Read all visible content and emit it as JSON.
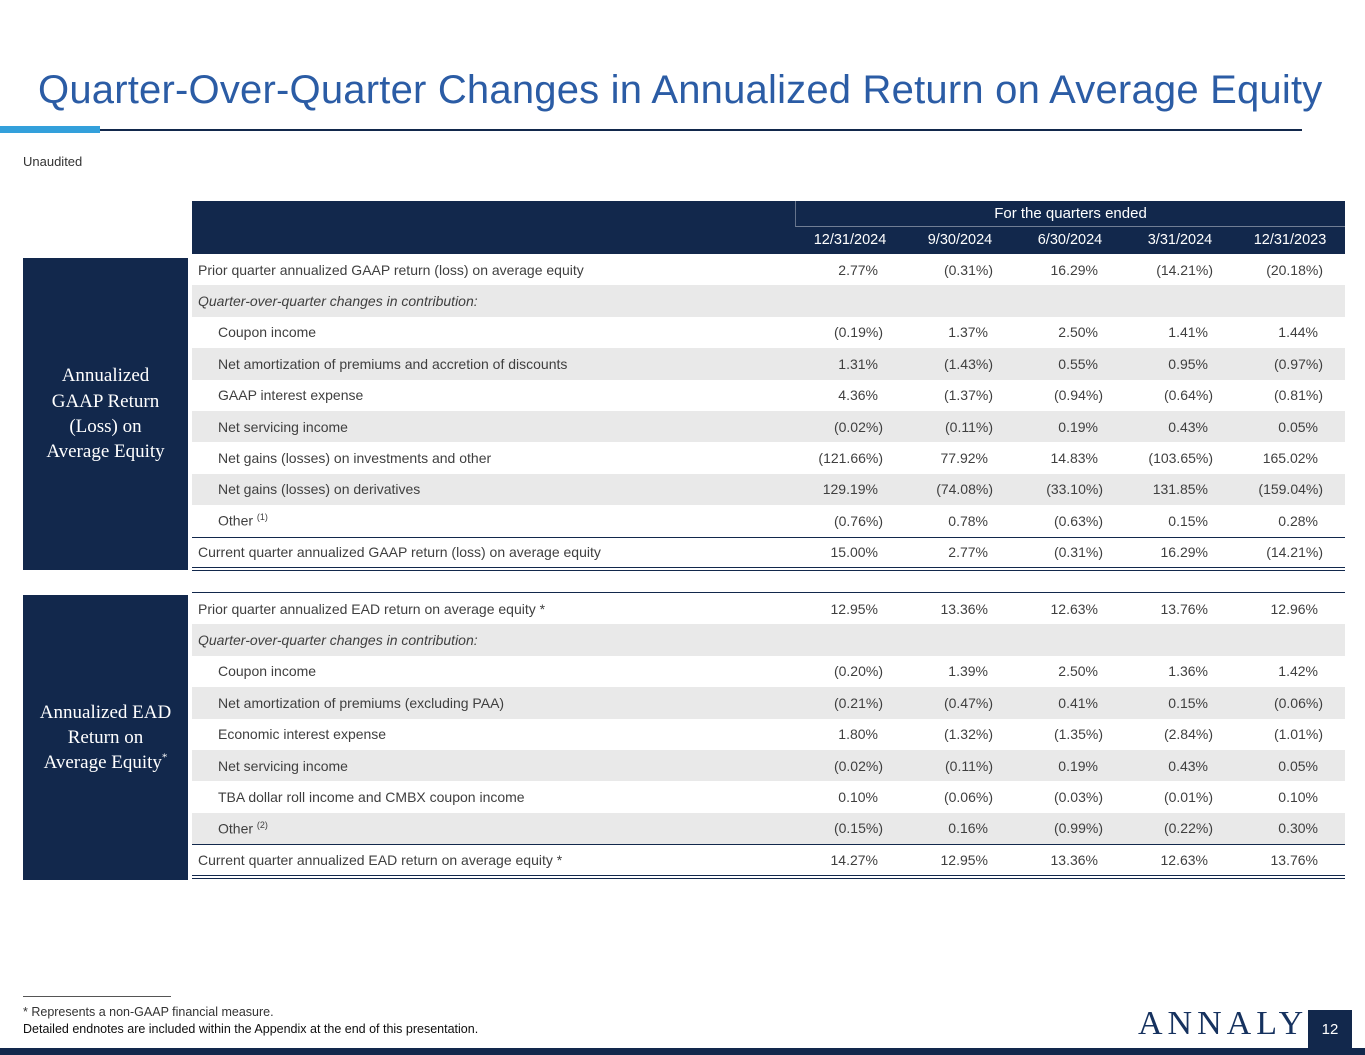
{
  "slide": {
    "title": "Quarter-Over-Quarter Changes in Annualized Return on Average Equity",
    "subtitle": "Unaudited",
    "page_number": "12",
    "logo_text": "ANNALY",
    "logo_reg": "®"
  },
  "colors": {
    "navy": "#12284C",
    "title_blue": "#2B5CA5",
    "accent_blue": "#33A0DB",
    "row_shade": "#E9E9E9",
    "body_text": "#3F3F3F"
  },
  "table_header": {
    "quarters_label": "For the quarters ended",
    "columns": [
      "12/31/2024",
      "9/30/2024",
      "6/30/2024",
      "3/31/2024",
      "12/31/2023"
    ]
  },
  "sections": [
    {
      "sidebar_lines": [
        "Annualized",
        "GAAP Return",
        "(Loss) on",
        "Average Equity"
      ],
      "sidebar_sup": "",
      "rows": [
        {
          "label": "Prior quarter annualized GAAP return (loss) on average equity",
          "sup": "",
          "indent": false,
          "shade": false,
          "type": "plain",
          "values": [
            "2.77%",
            "(0.31%)",
            "16.29%",
            "(14.21%)",
            "(20.18%)"
          ]
        },
        {
          "label": "Quarter-over-quarter changes in contribution:",
          "sup": "",
          "indent": false,
          "shade": true,
          "type": "subheader",
          "values": []
        },
        {
          "label": "Coupon income",
          "sup": "",
          "indent": true,
          "shade": false,
          "type": "plain",
          "values": [
            "(0.19%)",
            "1.37%",
            "2.50%",
            "1.41%",
            "1.44%"
          ]
        },
        {
          "label": "Net amortization of premiums and accretion of discounts",
          "sup": "",
          "indent": true,
          "shade": true,
          "type": "plain",
          "values": [
            "1.31%",
            "(1.43%)",
            "0.55%",
            "0.95%",
            "(0.97%)"
          ]
        },
        {
          "label": "GAAP interest expense",
          "sup": "",
          "indent": true,
          "shade": false,
          "type": "plain",
          "values": [
            "4.36%",
            "(1.37%)",
            "(0.94%)",
            "(0.64%)",
            "(0.81%)"
          ]
        },
        {
          "label": "Net servicing income",
          "sup": "",
          "indent": true,
          "shade": true,
          "type": "plain",
          "values": [
            "(0.02%)",
            "(0.11%)",
            "0.19%",
            "0.43%",
            "0.05%"
          ]
        },
        {
          "label": "Net gains (losses) on investments and other",
          "sup": "",
          "indent": true,
          "shade": false,
          "type": "plain",
          "values": [
            "(121.66%)",
            "77.92%",
            "14.83%",
            "(103.65%)",
            "165.02%"
          ]
        },
        {
          "label": "Net gains (losses) on derivatives",
          "sup": "",
          "indent": true,
          "shade": true,
          "type": "plain",
          "values": [
            "129.19%",
            "(74.08%)",
            "(33.10%)",
            "131.85%",
            "(159.04%)"
          ]
        },
        {
          "label": "Other ",
          "sup": "(1)",
          "indent": true,
          "shade": false,
          "type": "plain",
          "values": [
            "(0.76%)",
            "0.78%",
            "(0.63%)",
            "0.15%",
            "0.28%"
          ]
        },
        {
          "label": "Current quarter annualized GAAP return (loss) on average equity",
          "sup": "",
          "indent": false,
          "shade": false,
          "type": "total",
          "values": [
            "15.00%",
            "2.77%",
            "(0.31%)",
            "16.29%",
            "(14.21%)"
          ]
        }
      ]
    },
    {
      "sidebar_lines": [
        "Annualized EAD",
        "Return on",
        "Average Equity"
      ],
      "sidebar_sup": "*",
      "rows": [
        {
          "label": "Prior quarter annualized EAD return on average equity *",
          "sup": "",
          "indent": false,
          "shade": false,
          "type": "plain",
          "values": [
            "12.95%",
            "13.36%",
            "12.63%",
            "13.76%",
            "12.96%"
          ]
        },
        {
          "label": "Quarter-over-quarter changes in contribution:",
          "sup": "",
          "indent": false,
          "shade": true,
          "type": "subheader",
          "values": []
        },
        {
          "label": "Coupon income",
          "sup": "",
          "indent": true,
          "shade": false,
          "type": "plain",
          "values": [
            "(0.20%)",
            "1.39%",
            "2.50%",
            "1.36%",
            "1.42%"
          ]
        },
        {
          "label": "Net amortization of premiums (excluding PAA)",
          "sup": "",
          "indent": true,
          "shade": true,
          "type": "plain",
          "values": [
            "(0.21%)",
            "(0.47%)",
            "0.41%",
            "0.15%",
            "(0.06%)"
          ]
        },
        {
          "label": "Economic interest expense",
          "sup": "",
          "indent": true,
          "shade": false,
          "type": "plain",
          "values": [
            "1.80%",
            "(1.32%)",
            "(1.35%)",
            "(2.84%)",
            "(1.01%)"
          ]
        },
        {
          "label": "Net servicing income",
          "sup": "",
          "indent": true,
          "shade": true,
          "type": "plain",
          "values": [
            "(0.02%)",
            "(0.11%)",
            "0.19%",
            "0.43%",
            "0.05%"
          ]
        },
        {
          "label": "TBA dollar roll income and CMBX coupon income",
          "sup": "",
          "indent": true,
          "shade": false,
          "type": "plain",
          "values": [
            "0.10%",
            "(0.06%)",
            "(0.03%)",
            "(0.01%)",
            "0.10%"
          ]
        },
        {
          "label": "Other ",
          "sup": "(2)",
          "indent": true,
          "shade": true,
          "type": "plain",
          "values": [
            "(0.15%)",
            "0.16%",
            "(0.99%)",
            "(0.22%)",
            "0.30%"
          ]
        },
        {
          "label": "Current quarter annualized EAD return on average equity *",
          "sup": "",
          "indent": false,
          "shade": false,
          "type": "total",
          "values": [
            "14.27%",
            "12.95%",
            "13.36%",
            "12.63%",
            "13.76%"
          ]
        }
      ]
    }
  ],
  "footnotes": {
    "line1": "* Represents a non-GAAP financial measure.",
    "line2": "Detailed endnotes are included within the Appendix at the end of this presentation."
  }
}
